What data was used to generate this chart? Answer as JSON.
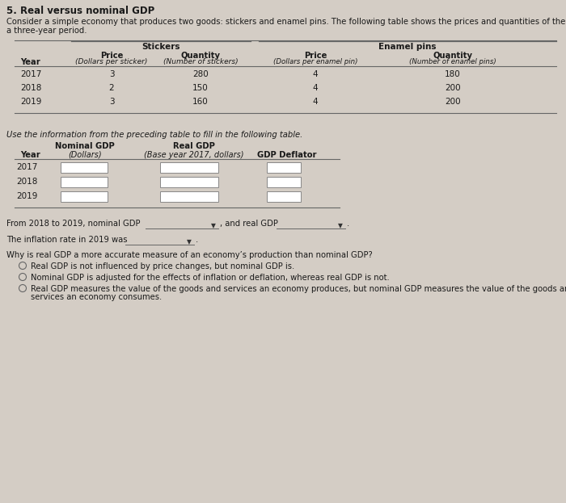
{
  "title": "5. Real versus nominal GDP",
  "intro_line1": "Consider a simple economy that produces two goods: stickers and enamel pins. The following table shows the prices and quantities of the goods over",
  "intro_line2": "a three-year period.",
  "stickers_header": "Stickers",
  "enamel_header": "Enamel pins",
  "t1_col_labels_row1": [
    "",
    "Price",
    "Quantity",
    "Price",
    "Quantity"
  ],
  "t1_col_labels_row2": [
    "Year",
    "(Dollars per sticker)",
    "(Number of stickers)",
    "(Dollars per enamel pin)",
    "(Number of enamel pins)"
  ],
  "t1_rows": [
    [
      "2017",
      "3",
      "280",
      "4",
      "180"
    ],
    [
      "2018",
      "2",
      "150",
      "4",
      "200"
    ],
    [
      "2019",
      "3",
      "160",
      "4",
      "200"
    ]
  ],
  "fill_text": "Use the information from the preceding table to fill in the following table.",
  "t2_header_row1": [
    "",
    "Nominal GDP",
    "",
    "Real GDP",
    ""
  ],
  "t2_header_row2": [
    "Year",
    "(Dollars)",
    "",
    "(Base year 2017, dollars)",
    "GDP Deflator"
  ],
  "t2_years": [
    "2017",
    "2018",
    "2019"
  ],
  "from_text": "From 2018 to 2019, nominal GDP",
  "and_real_text": ", and real GDP",
  "period": ".",
  "inflation_text": "The inflation rate in 2019 was",
  "question": "Why is real GDP a more accurate measure of an economy’s production than nominal GDP?",
  "options": [
    "Real GDP is not influenced by price changes, but nominal GDP is.",
    "Nominal GDP is adjusted for the effects of inflation or deflation, whereas real GDP is not.",
    "Real GDP measures the value of the goods and services an economy produces, but nominal GDP measures the value of the goods and",
    "services an economy consumes."
  ],
  "bg_color": "#d4cdc5",
  "white": "#ffffff",
  "line_color": "#666666",
  "box_border": "#888888",
  "dark_text": "#1a1a1a",
  "dd_color": "#bfb8b0"
}
